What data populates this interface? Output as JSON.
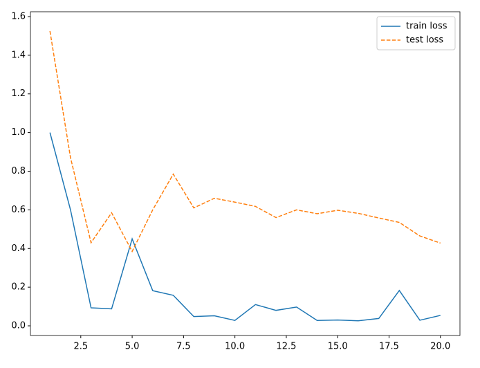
{
  "chart_data": {
    "type": "line",
    "x": [
      1,
      2,
      3,
      4,
      5,
      6,
      7,
      8,
      9,
      10,
      11,
      12,
      13,
      14,
      15,
      16,
      17,
      18,
      19,
      20
    ],
    "series": [
      {
        "name": "train loss",
        "color": "#1f77b4",
        "dash": "solid",
        "values": [
          1.0,
          0.6,
          0.093,
          0.088,
          0.45,
          0.182,
          0.158,
          0.048,
          0.052,
          0.028,
          0.11,
          0.08,
          0.097,
          0.028,
          0.03,
          0.026,
          0.038,
          0.183,
          0.029,
          0.054
        ]
      },
      {
        "name": "test loss",
        "color": "#ff7f0e",
        "dash": "dashed",
        "values": [
          1.525,
          0.87,
          0.43,
          0.585,
          0.385,
          0.6,
          0.785,
          0.61,
          0.66,
          0.64,
          0.618,
          0.56,
          0.6,
          0.58,
          0.598,
          0.582,
          0.558,
          0.535,
          0.465,
          0.428
        ]
      }
    ],
    "xlim": [
      0.05,
      20.95
    ],
    "ylim": [
      -0.05,
      1.625
    ],
    "xticks": [
      2.5,
      {
        "value": 5,
        "label": "5.0"
      },
      7.5,
      {
        "value": 10,
        "label": "10.0"
      },
      12.5,
      {
        "value": 15,
        "label": "15.0"
      },
      17.5,
      {
        "value": 20,
        "label": "20.0"
      }
    ],
    "yticks": [
      {
        "value": 0,
        "label": "0.0"
      },
      0.2,
      0.4,
      0.6,
      0.8,
      {
        "value": 1,
        "label": "1.0"
      },
      1.2,
      1.4,
      1.6
    ],
    "legend": "upper right"
  }
}
